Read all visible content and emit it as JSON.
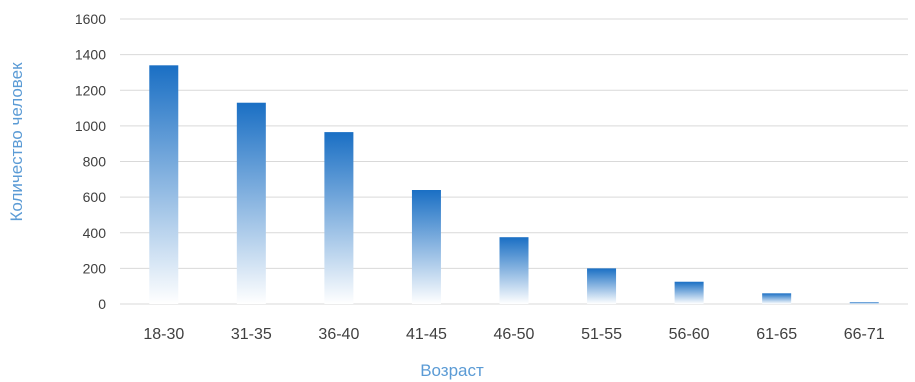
{
  "chart_data": {
    "type": "bar",
    "categories": [
      "18-30",
      "31-35",
      "36-40",
      "41-45",
      "46-50",
      "51-55",
      "56-60",
      "61-65",
      "66-71"
    ],
    "values": [
      1340,
      1130,
      965,
      640,
      375,
      200,
      125,
      60,
      10
    ],
    "title": "",
    "xlabel": "Возраст",
    "ylabel": "Количество человек",
    "ylim": [
      0,
      1600
    ],
    "yticks": [
      0,
      200,
      400,
      600,
      800,
      1000,
      1200,
      1400,
      1600
    ],
    "grid": true,
    "bar_color_top": "#1a6fc4",
    "bar_color_bottom": "#ffffff",
    "axis_title_color": "#5b9bd5"
  }
}
